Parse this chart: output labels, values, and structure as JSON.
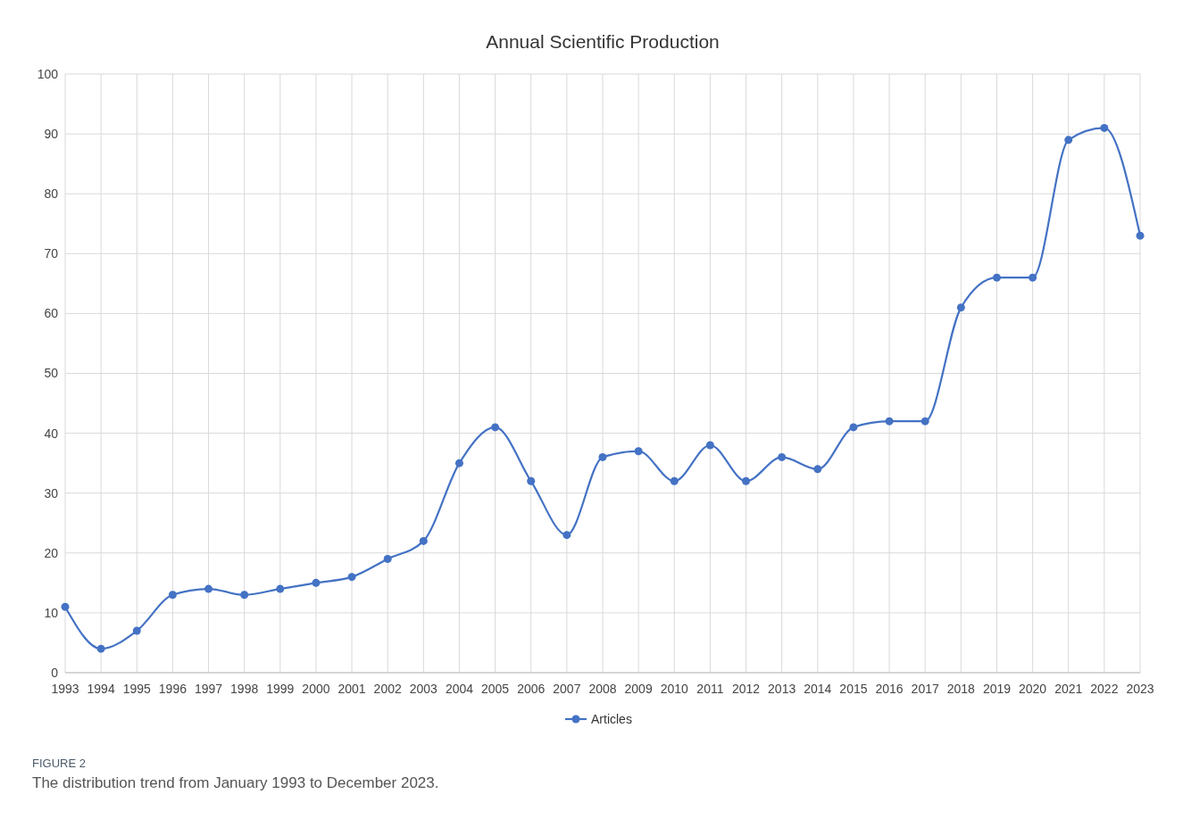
{
  "chart_data": {
    "type": "line",
    "title": "Annual Scientific Production",
    "categories": [
      "1993",
      "1994",
      "1995",
      "1996",
      "1997",
      "1998",
      "1999",
      "2000",
      "2001",
      "2002",
      "2003",
      "2004",
      "2005",
      "2006",
      "2007",
      "2008",
      "2009",
      "2010",
      "2011",
      "2012",
      "2013",
      "2014",
      "2015",
      "2016",
      "2017",
      "2018",
      "2019",
      "2020",
      "2021",
      "2022",
      "2023"
    ],
    "series": [
      {
        "name": "Articles",
        "color": "#4472c4",
        "values": [
          11,
          4,
          7,
          13,
          14,
          13,
          14,
          15,
          16,
          19,
          22,
          35,
          41,
          32,
          23,
          36,
          37,
          32,
          38,
          32,
          36,
          34,
          41,
          42,
          42,
          61,
          66,
          66,
          89,
          91,
          73
        ]
      }
    ],
    "ylim": [
      0,
      100
    ],
    "yticks": [
      0,
      10,
      20,
      30,
      40,
      50,
      60,
      70,
      80,
      90,
      100
    ],
    "grid": true,
    "legend": "bottom",
    "marker": "circle",
    "line_style": "solid",
    "annotations": [
      "FIGURE 2",
      "The distribution trend from January 1993 to December 2023."
    ]
  }
}
